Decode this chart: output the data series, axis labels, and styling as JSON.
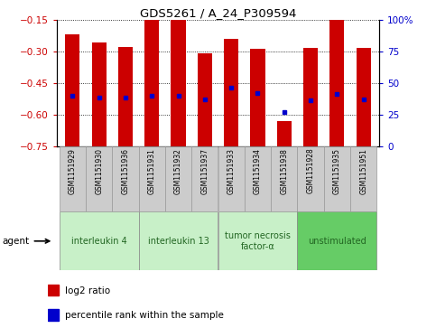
{
  "title": "GDS5261 / A_24_P309594",
  "samples": [
    "GSM1151929",
    "GSM1151930",
    "GSM1151936",
    "GSM1151931",
    "GSM1151932",
    "GSM1151937",
    "GSM1151933",
    "GSM1151934",
    "GSM1151938",
    "GSM1151928",
    "GSM1151935",
    "GSM1151951"
  ],
  "log2_ratio": [
    -0.22,
    -0.26,
    -0.28,
    -0.15,
    -0.15,
    -0.31,
    -0.24,
    -0.29,
    -0.63,
    -0.285,
    -0.15,
    -0.285
  ],
  "percentile_rank": [
    40,
    38,
    38,
    40,
    40,
    37,
    46,
    42,
    27,
    36,
    41,
    37
  ],
  "ylim_left": [
    -0.75,
    -0.15
  ],
  "ylim_right": [
    0,
    100
  ],
  "yticks_left": [
    -0.75,
    -0.6,
    -0.45,
    -0.3,
    -0.15
  ],
  "yticks_right": [
    0,
    25,
    50,
    75,
    100
  ],
  "groups": [
    {
      "label": "interleukin 4",
      "start": 0,
      "end": 3,
      "color": "#c8f0c8"
    },
    {
      "label": "interleukin 13",
      "start": 3,
      "end": 6,
      "color": "#c8f0c8"
    },
    {
      "label": "tumor necrosis\nfactor-α",
      "start": 6,
      "end": 9,
      "color": "#c8f0c8"
    },
    {
      "label": "unstimulated",
      "start": 9,
      "end": 12,
      "color": "#66cc66"
    }
  ],
  "bar_color": "#cc0000",
  "dot_color": "#0000cc",
  "bg_color": "#ffffff",
  "plot_bg": "#ffffff",
  "label_color_left": "#cc0000",
  "label_color_right": "#0000cc",
  "sample_box_color": "#cccccc",
  "sample_box_edge": "#999999",
  "agent_label": "agent",
  "legend_log2": "log2 ratio",
  "legend_pct": "percentile rank within the sample"
}
